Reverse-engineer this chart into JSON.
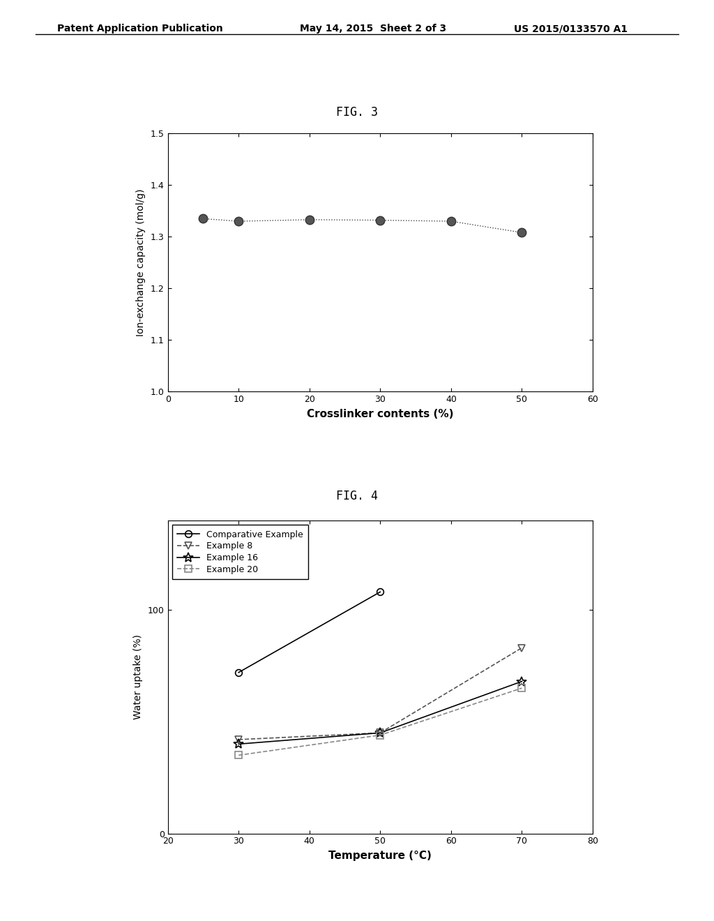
{
  "fig3": {
    "title": "FIG. 3",
    "xlabel": "Crosslinker contents (%)",
    "ylabel": "Ion-exchange capacity (mol/g)",
    "xlim": [
      0,
      60
    ],
    "ylim": [
      1.0,
      1.5
    ],
    "xticks": [
      0,
      10,
      20,
      30,
      40,
      50,
      60
    ],
    "yticks": [
      1.0,
      1.1,
      1.2,
      1.3,
      1.4,
      1.5
    ],
    "x": [
      5,
      10,
      20,
      30,
      40,
      50
    ],
    "y": [
      1.335,
      1.33,
      1.333,
      1.332,
      1.33,
      1.308
    ]
  },
  "fig4": {
    "title": "FIG. 4",
    "xlabel": "Temperature (°C)",
    "ylabel": "Water uptake (%)",
    "xlim": [
      20,
      80
    ],
    "ylim": [
      0,
      140
    ],
    "xticks": [
      20,
      30,
      40,
      50,
      60,
      70,
      80
    ],
    "yticks": [
      0,
      100
    ],
    "series": [
      {
        "label": "Comparative Example",
        "x": [
          30,
          50
        ],
        "y": [
          72,
          108
        ],
        "marker": "o",
        "linestyle": "-",
        "color": "#000000",
        "markersize": 7
      },
      {
        "label": "Example 8",
        "x": [
          30,
          50,
          70
        ],
        "y": [
          42,
          45,
          83
        ],
        "marker": "v",
        "linestyle": "--",
        "color": "#555555",
        "markersize": 7
      },
      {
        "label": "Example 16",
        "x": [
          30,
          50,
          70
        ],
        "y": [
          40,
          45,
          68
        ],
        "marker": "*",
        "linestyle": "-",
        "color": "#000000",
        "markersize": 10
      },
      {
        "label": "Example 20",
        "x": [
          30,
          50,
          70
        ],
        "y": [
          35,
          44,
          65
        ],
        "marker": "s",
        "linestyle": "--",
        "color": "#888888",
        "markersize": 7
      }
    ]
  },
  "header_left": "Patent Application Publication",
  "header_mid": "May 14, 2015  Sheet 2 of 3",
  "header_right": "US 2015/0133570 A1",
  "bg_color": "#ffffff",
  "text_color": "#000000"
}
